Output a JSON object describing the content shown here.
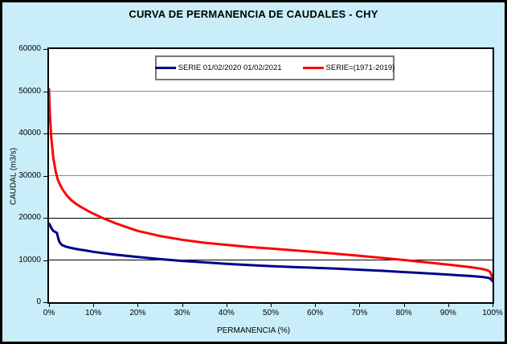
{
  "colors": {
    "page_background": "#C9EEF9",
    "plot_background": "#FFFFFF",
    "axis": "#000000",
    "gridline_gray": "#8C8C8C"
  },
  "chart_data": {
    "type": "line",
    "title": "CURVA DE PERMANENCIA DE CAUDALES - CHY",
    "xlabel": "PERMANENCIA (%)",
    "ylabel": "CAUDAL (m3/s)",
    "xlim": [
      0,
      100
    ],
    "ylim": [
      0,
      60000
    ],
    "x_tick_labels": [
      "0%",
      "10%",
      "20%",
      "30%",
      "40%",
      "50%",
      "60%",
      "70%",
      "80%",
      "90%",
      "100%"
    ],
    "x_tick_values": [
      0,
      10,
      20,
      30,
      40,
      50,
      60,
      70,
      80,
      90,
      100
    ],
    "y_tick_labels": [
      "0",
      "10000",
      "20000",
      "30000",
      "40000",
      "50000",
      "60000"
    ],
    "y_tick_values": [
      0,
      10000,
      20000,
      30000,
      40000,
      50000,
      60000
    ],
    "grid": "horizontal-major",
    "legend_position": "top-center-inside",
    "series": [
      {
        "name": "SERIE 01/02/2020 01/02/2021",
        "color": "#00008C",
        "points": [
          [
            0,
            18600
          ],
          [
            0.3,
            18100
          ],
          [
            0.6,
            17400
          ],
          [
            1,
            16900
          ],
          [
            1.5,
            16600
          ],
          [
            1.8,
            16400
          ],
          [
            2,
            15500
          ],
          [
            2.3,
            14400
          ],
          [
            2.7,
            13800
          ],
          [
            3,
            13500
          ],
          [
            4,
            13100
          ],
          [
            5,
            12850
          ],
          [
            6,
            12650
          ],
          [
            7,
            12450
          ],
          [
            8,
            12300
          ],
          [
            10,
            11950
          ],
          [
            12,
            11650
          ],
          [
            15,
            11250
          ],
          [
            20,
            10700
          ],
          [
            25,
            10200
          ],
          [
            30,
            9800
          ],
          [
            35,
            9450
          ],
          [
            40,
            9100
          ],
          [
            45,
            8800
          ],
          [
            50,
            8550
          ],
          [
            55,
            8350
          ],
          [
            60,
            8150
          ],
          [
            65,
            7950
          ],
          [
            70,
            7700
          ],
          [
            75,
            7450
          ],
          [
            80,
            7150
          ],
          [
            85,
            6850
          ],
          [
            90,
            6550
          ],
          [
            93,
            6350
          ],
          [
            95,
            6200
          ],
          [
            97,
            6050
          ],
          [
            98,
            5950
          ],
          [
            99,
            5800
          ],
          [
            99.5,
            5600
          ],
          [
            100,
            5000
          ]
        ]
      },
      {
        "name": "SERIE=(1971-2019)",
        "color": "#FF0000",
        "points": [
          [
            0,
            50500
          ],
          [
            0.2,
            44500
          ],
          [
            0.5,
            39000
          ],
          [
            1,
            34000
          ],
          [
            1.5,
            31000
          ],
          [
            2,
            29000
          ],
          [
            2.5,
            27800
          ],
          [
            3,
            26800
          ],
          [
            4,
            25300
          ],
          [
            5,
            24200
          ],
          [
            6,
            23400
          ],
          [
            7,
            22700
          ],
          [
            8,
            22100
          ],
          [
            9,
            21500
          ],
          [
            10,
            21000
          ],
          [
            12,
            20000
          ],
          [
            15,
            18700
          ],
          [
            20,
            16900
          ],
          [
            25,
            15700
          ],
          [
            30,
            14800
          ],
          [
            35,
            14100
          ],
          [
            40,
            13600
          ],
          [
            45,
            13100
          ],
          [
            50,
            12700
          ],
          [
            55,
            12300
          ],
          [
            60,
            11900
          ],
          [
            65,
            11450
          ],
          [
            70,
            11000
          ],
          [
            75,
            10500
          ],
          [
            80,
            10000
          ],
          [
            85,
            9450
          ],
          [
            90,
            8900
          ],
          [
            93,
            8550
          ],
          [
            95,
            8300
          ],
          [
            97,
            8000
          ],
          [
            98,
            7800
          ],
          [
            99,
            7500
          ],
          [
            99.5,
            7100
          ],
          [
            100,
            5700
          ]
        ]
      }
    ]
  }
}
